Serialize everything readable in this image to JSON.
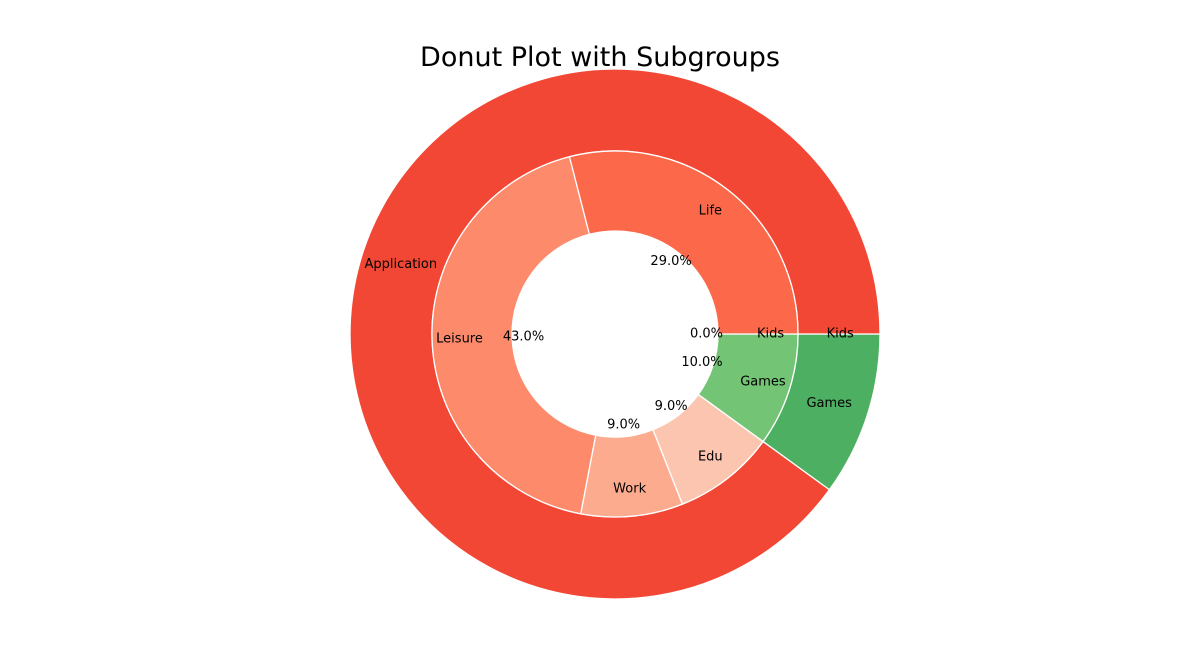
{
  "chart_data": {
    "type": "pie",
    "title": "Donut Plot with Subgroups",
    "outer_ring": {
      "categories": [
        "Kids",
        "Games",
        "Application"
      ],
      "values": [
        0.0,
        10.0,
        90.0
      ],
      "colors": [
        "#f24734",
        "#4caf61",
        "#f24734"
      ]
    },
    "inner_ring": {
      "categories": [
        "Kids",
        "Games",
        "Edu",
        "Work",
        "Leisure",
        "Life"
      ],
      "values": [
        0.0,
        10.0,
        9.0,
        9.0,
        43.0,
        29.0
      ],
      "pct_labels": [
        "0.0%",
        "10.0%",
        "9.0%",
        "9.0%",
        "43.0%",
        "29.0%"
      ],
      "colors": [
        "#4caf61",
        "#74c476",
        "#fcc5af",
        "#fcab8f",
        "#fc8a6b",
        "#fb694a"
      ]
    }
  }
}
